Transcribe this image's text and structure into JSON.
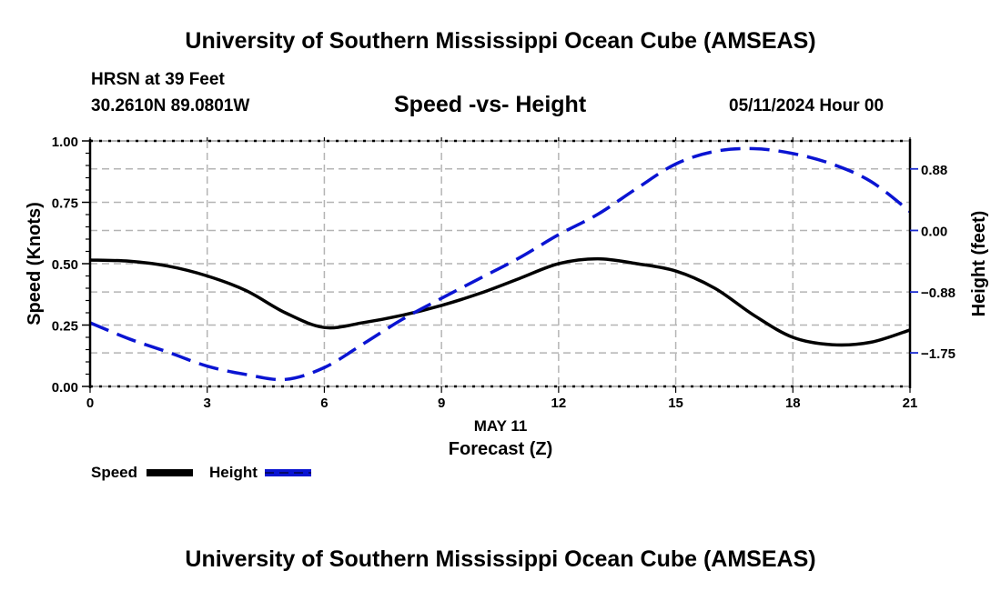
{
  "header": {
    "top_title": "University of Southern Mississippi Ocean Cube (AMSEAS)",
    "station": "HRSN at 39 Feet",
    "coords": "30.2610N  89.0801W",
    "chart_title": "Speed -vs- Height",
    "datetime": "05/11/2024 Hour 00"
  },
  "footer": {
    "bottom_title": "University of Southern Mississippi Ocean Cube (AMSEAS)"
  },
  "chart_data": {
    "type": "line",
    "title": "Speed -vs- Height",
    "xlabel": "Forecast (Z)",
    "xlabel_date": "MAY 11",
    "ylabel": "Speed (Knots)",
    "y2label": "Height (feet)",
    "x": [
      0,
      1,
      2,
      3,
      4,
      5,
      6,
      7,
      8,
      9,
      10,
      11,
      12,
      13,
      14,
      15,
      16,
      17,
      18,
      19,
      20,
      21
    ],
    "xlim": [
      0,
      21
    ],
    "xticks": [
      0,
      3,
      6,
      9,
      12,
      15,
      18,
      21
    ],
    "xtick_labels": [
      "0",
      "3",
      "6",
      "9",
      "12",
      "15",
      "18",
      "21"
    ],
    "ylim": [
      0,
      1.0
    ],
    "yticks": [
      0,
      0.25,
      0.5,
      0.75,
      1.0
    ],
    "ytick_labels": [
      "0.00",
      "0.25",
      "0.50",
      "0.75",
      "1.00"
    ],
    "y2lim": [
      -2.23,
      1.28
    ],
    "y2ticks": [
      0.88,
      0.0,
      -0.88,
      -1.75
    ],
    "y2tick_labels": [
      "0.88",
      "0.00",
      "−0.88",
      "−1.75"
    ],
    "grid": true,
    "legend_position": "bottom-left",
    "series": [
      {
        "name": "Speed",
        "axis": "left",
        "color": "#000000",
        "style": "solid",
        "values": [
          0.515,
          0.51,
          0.49,
          0.45,
          0.39,
          0.3,
          0.24,
          0.26,
          0.29,
          0.33,
          0.38,
          0.44,
          0.5,
          0.52,
          0.5,
          0.47,
          0.4,
          0.29,
          0.2,
          0.17,
          0.18,
          0.23
        ]
      },
      {
        "name": "Height",
        "axis": "right",
        "color": "#0a14d2",
        "style": "dashed",
        "values": [
          -1.32,
          -1.55,
          -1.74,
          -1.94,
          -2.06,
          -2.13,
          -1.96,
          -1.62,
          -1.27,
          -0.97,
          -0.68,
          -0.39,
          -0.06,
          0.23,
          0.6,
          0.95,
          1.13,
          1.17,
          1.1,
          0.95,
          0.7,
          0.27
        ]
      }
    ]
  }
}
